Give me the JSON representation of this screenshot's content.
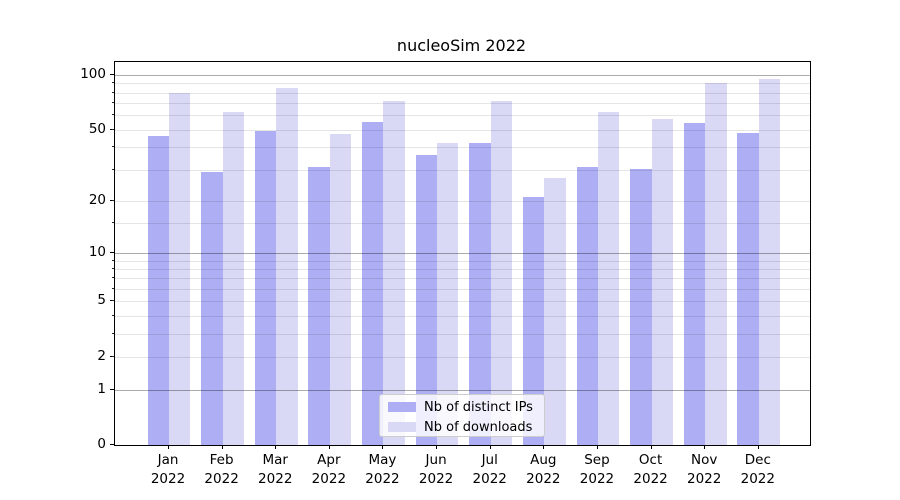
{
  "title": "nucleoSim 2022",
  "chart_data": {
    "type": "bar",
    "title": "nucleoSim 2022",
    "categories": [
      "Jan",
      "Feb",
      "Mar",
      "Apr",
      "May",
      "Jun",
      "Jul",
      "Aug",
      "Sep",
      "Oct",
      "Nov",
      "Dec"
    ],
    "x_year_label": "2022",
    "series": [
      {
        "name": "Nb of distinct IPs",
        "color": "#aeaef5",
        "values": [
          46,
          29,
          49,
          31,
          55,
          36,
          42,
          21,
          31,
          30,
          54,
          48
        ]
      },
      {
        "name": "Nb of downloads",
        "color": "#d9d9f5",
        "values": [
          79,
          62,
          85,
          47,
          72,
          42,
          72,
          27,
          62,
          57,
          90,
          95
        ]
      }
    ],
    "yscale": "log1p",
    "ylim": [
      0,
      116
    ],
    "y_tick_labels": [
      "0",
      "1",
      "2",
      "5",
      "10",
      "20",
      "50",
      "100"
    ],
    "y_tick_values": [
      0,
      1,
      2,
      5,
      10,
      20,
      50,
      100
    ],
    "y_major_gridlines": [
      1,
      10,
      100
    ],
    "y_minor_gridlines": [
      2,
      3,
      4,
      5,
      6,
      7,
      8,
      9,
      15,
      20,
      30,
      40,
      50,
      60,
      70,
      80,
      90
    ],
    "grid": true,
    "legend": {
      "position": "lower center",
      "items": [
        "Nb of distinct IPs",
        "Nb of downloads"
      ]
    },
    "axis_color": "#000000",
    "bar_alpha_note": "gridlines visible through bars"
  }
}
